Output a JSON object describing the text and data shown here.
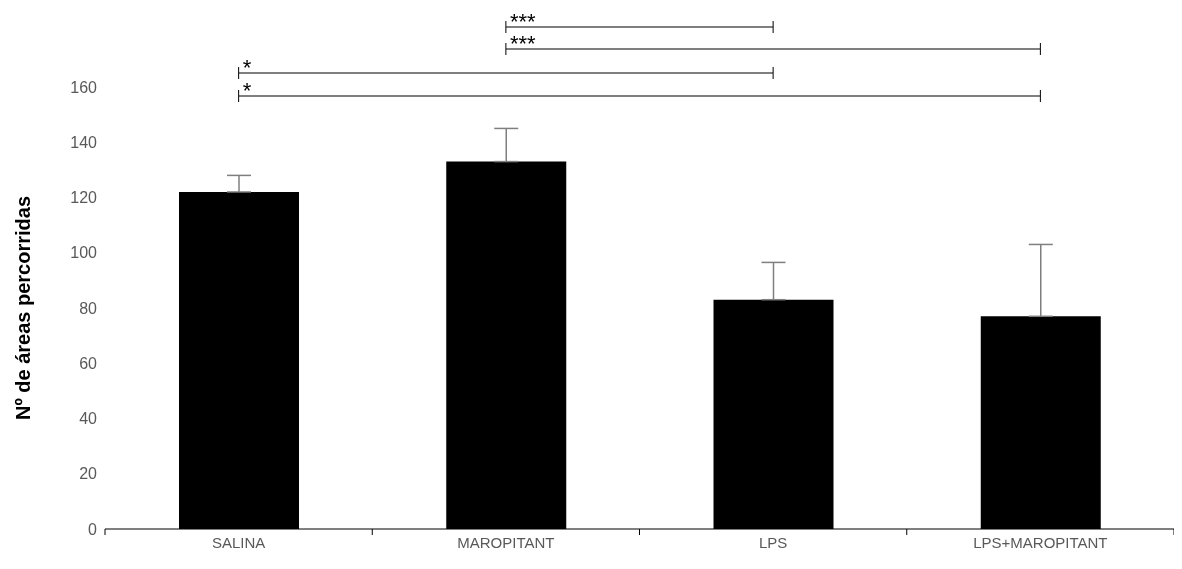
{
  "chart_data": {
    "type": "bar",
    "ylabel": "Nº de áreas percorridas",
    "categories": [
      "SALINA",
      "MAROPITANT",
      "LPS",
      "LPS+MAROPITANT"
    ],
    "values": [
      122,
      133,
      83,
      77
    ],
    "errors": [
      [
        122,
        128
      ],
      [
        133,
        145
      ],
      [
        83,
        96.5
      ],
      [
        77,
        103
      ]
    ],
    "color": "#000000",
    "ylim": [
      0,
      160
    ],
    "yticks": [
      0,
      20,
      40,
      60,
      80,
      100,
      120,
      140,
      160
    ],
    "annotations": [
      "***",
      "***",
      "*",
      "*"
    ]
  }
}
